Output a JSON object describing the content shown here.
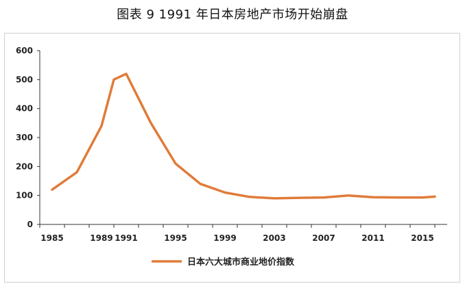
{
  "figure": {
    "title": "图表 9   1991 年日本房地产市场开始崩盘"
  },
  "chart_data": {
    "type": "line",
    "title": "图表 9   1991 年日本房地产市场开始崩盘",
    "xlabel": "",
    "ylabel": "",
    "xlim": [
      1984,
      2017
    ],
    "ylim": [
      0,
      600
    ],
    "y_ticks": [
      0,
      100,
      200,
      300,
      400,
      500,
      600
    ],
    "x_tick_labels": [
      "1985",
      "1989",
      "1991",
      "1995",
      "1999",
      "2003",
      "2007",
      "2011",
      "2015"
    ],
    "x_tick_values": [
      1985,
      1989,
      1991,
      1995,
      1999,
      2003,
      2007,
      2011,
      2015
    ],
    "grid": false,
    "legend_position": "bottom",
    "series": [
      {
        "name": "日本六大城市商业地价指数",
        "color": "#E07B39",
        "x": [
          1985,
          1987,
          1989,
          1990,
          1991,
          1993,
          1995,
          1997,
          1999,
          2001,
          2003,
          2005,
          2007,
          2009,
          2011,
          2013,
          2015,
          2016
        ],
        "y": [
          120,
          180,
          340,
          500,
          520,
          350,
          210,
          140,
          110,
          95,
          90,
          92,
          93,
          100,
          94,
          93,
          93,
          96
        ]
      }
    ]
  }
}
